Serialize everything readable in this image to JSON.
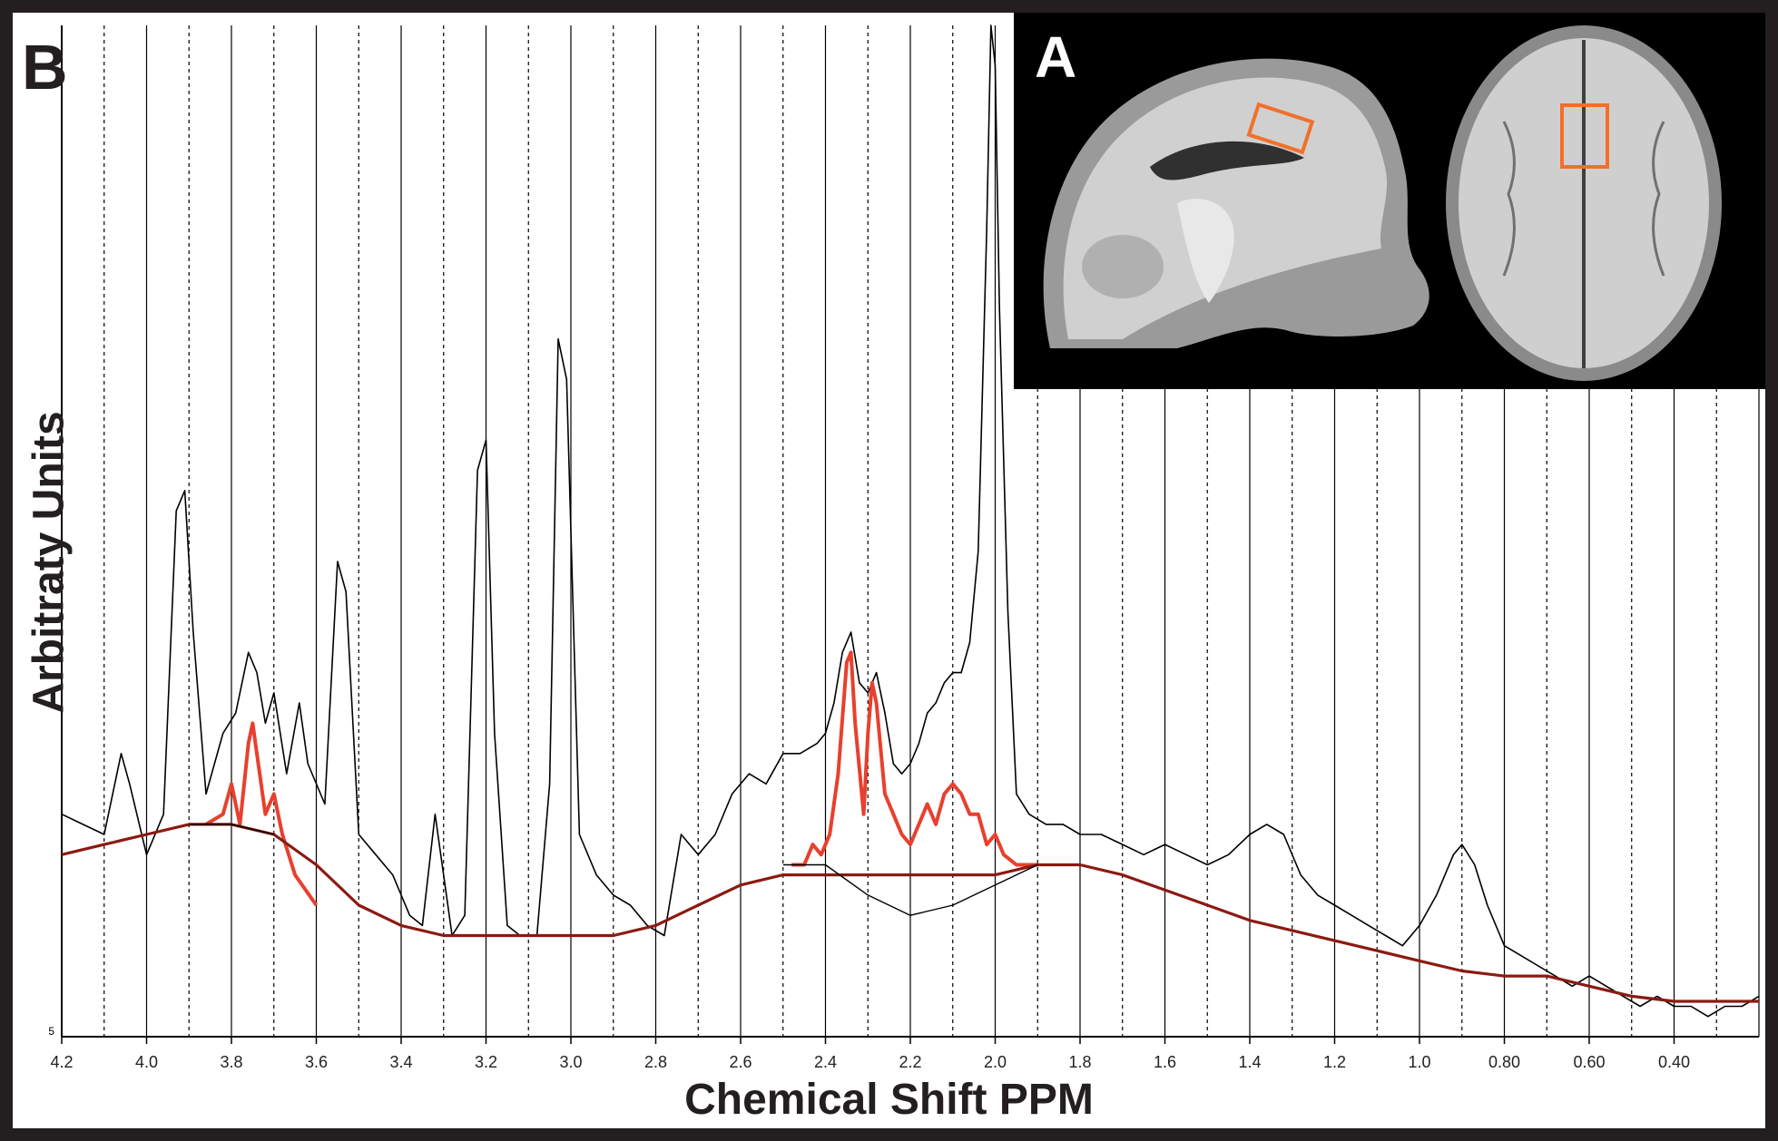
{
  "panels": {
    "b_label": "B",
    "a_label": "A"
  },
  "colors": {
    "spectrum": "#000000",
    "metabolite_fit": "#e8402e",
    "baseline_fit": "#8b1a12",
    "roi_box": "#f36f2a",
    "frame": "#231f20"
  },
  "chart_data": {
    "type": "line",
    "title": "",
    "xlabel": "Chemical Shift PPM",
    "ylabel": "Arbitraty Units",
    "x_reversed": true,
    "xlim": [
      4.2,
      0.2
    ],
    "ylim": [
      0,
      100
    ],
    "x_tick_labels": [
      "4.2",
      "4.0",
      "3.8",
      "3.6",
      "3.4",
      "3.2",
      "3.0",
      "2.8",
      "2.6",
      "2.4",
      "2.2",
      "2.0",
      "1.8",
      "1.6",
      "1.4",
      "1.2",
      "1.0",
      "0.80",
      "0.60",
      "0.40"
    ],
    "x_tick_values": [
      4.2,
      4.0,
      3.8,
      3.6,
      3.4,
      3.2,
      3.0,
      2.8,
      2.6,
      2.4,
      2.2,
      2.0,
      1.8,
      1.6,
      1.4,
      1.2,
      1.0,
      0.8,
      0.6,
      0.4
    ],
    "y_tick_label": "5",
    "grid": {
      "solid_every_ppm": 0.2,
      "dashed_offset_ppm": 0.1
    },
    "series": [
      {
        "role": "measured-spectrum",
        "color": "#000000",
        "points": [
          [
            4.2,
            22
          ],
          [
            4.15,
            21
          ],
          [
            4.1,
            20
          ],
          [
            4.06,
            28
          ],
          [
            4.04,
            25
          ],
          [
            4.0,
            18
          ],
          [
            3.96,
            22
          ],
          [
            3.93,
            52
          ],
          [
            3.91,
            54
          ],
          [
            3.89,
            40
          ],
          [
            3.86,
            24
          ],
          [
            3.82,
            30
          ],
          [
            3.79,
            32
          ],
          [
            3.76,
            38
          ],
          [
            3.74,
            36
          ],
          [
            3.72,
            31
          ],
          [
            3.7,
            34
          ],
          [
            3.67,
            26
          ],
          [
            3.64,
            33
          ],
          [
            3.62,
            27
          ],
          [
            3.58,
            23
          ],
          [
            3.55,
            47
          ],
          [
            3.53,
            44
          ],
          [
            3.5,
            20
          ],
          [
            3.46,
            18
          ],
          [
            3.42,
            16
          ],
          [
            3.38,
            12
          ],
          [
            3.35,
            11
          ],
          [
            3.32,
            22
          ],
          [
            3.28,
            10
          ],
          [
            3.25,
            12
          ],
          [
            3.22,
            56
          ],
          [
            3.2,
            59
          ],
          [
            3.18,
            30
          ],
          [
            3.15,
            11
          ],
          [
            3.12,
            10
          ],
          [
            3.08,
            10
          ],
          [
            3.05,
            25
          ],
          [
            3.03,
            69
          ],
          [
            3.01,
            65
          ],
          [
            2.98,
            20
          ],
          [
            2.94,
            16
          ],
          [
            2.9,
            14
          ],
          [
            2.86,
            13
          ],
          [
            2.82,
            11
          ],
          [
            2.78,
            10
          ],
          [
            2.74,
            20
          ],
          [
            2.7,
            18
          ],
          [
            2.66,
            20
          ],
          [
            2.62,
            24
          ],
          [
            2.58,
            26
          ],
          [
            2.54,
            25
          ],
          [
            2.5,
            28
          ],
          [
            2.46,
            28
          ],
          [
            2.42,
            29
          ],
          [
            2.4,
            30
          ],
          [
            2.38,
            33
          ],
          [
            2.36,
            38
          ],
          [
            2.34,
            40
          ],
          [
            2.32,
            35
          ],
          [
            2.3,
            34
          ],
          [
            2.28,
            36
          ],
          [
            2.26,
            32
          ],
          [
            2.24,
            27
          ],
          [
            2.22,
            26
          ],
          [
            2.2,
            27
          ],
          [
            2.18,
            29
          ],
          [
            2.16,
            32
          ],
          [
            2.14,
            33
          ],
          [
            2.12,
            35
          ],
          [
            2.1,
            36
          ],
          [
            2.08,
            36
          ],
          [
            2.06,
            39
          ],
          [
            2.04,
            48
          ],
          [
            2.02,
            80
          ],
          [
            2.01,
            100
          ],
          [
            2.0,
            96
          ],
          [
            1.99,
            72
          ],
          [
            1.97,
            42
          ],
          [
            1.95,
            24
          ],
          [
            1.92,
            22
          ],
          [
            1.88,
            21
          ],
          [
            1.84,
            21
          ],
          [
            1.8,
            20
          ],
          [
            1.75,
            20
          ],
          [
            1.7,
            19
          ],
          [
            1.65,
            18
          ],
          [
            1.6,
            19
          ],
          [
            1.55,
            18
          ],
          [
            1.5,
            17
          ],
          [
            1.45,
            18
          ],
          [
            1.4,
            20
          ],
          [
            1.36,
            21
          ],
          [
            1.32,
            20
          ],
          [
            1.28,
            16
          ],
          [
            1.24,
            14
          ],
          [
            1.2,
            13
          ],
          [
            1.16,
            12
          ],
          [
            1.12,
            11
          ],
          [
            1.08,
            10
          ],
          [
            1.04,
            9
          ],
          [
            1.0,
            11
          ],
          [
            0.96,
            14
          ],
          [
            0.92,
            18
          ],
          [
            0.9,
            19
          ],
          [
            0.87,
            17
          ],
          [
            0.84,
            13
          ],
          [
            0.8,
            9
          ],
          [
            0.76,
            8
          ],
          [
            0.72,
            7
          ],
          [
            0.68,
            6
          ],
          [
            0.64,
            5
          ],
          [
            0.6,
            6
          ],
          [
            0.56,
            5
          ],
          [
            0.52,
            4
          ],
          [
            0.48,
            3
          ],
          [
            0.44,
            4
          ],
          [
            0.4,
            3
          ],
          [
            0.36,
            3
          ],
          [
            0.32,
            2
          ],
          [
            0.28,
            3
          ],
          [
            0.24,
            3
          ],
          [
            0.2,
            4
          ]
        ]
      },
      {
        "role": "metabolite-fit",
        "color": "#e8402e",
        "points": [
          [
            3.86,
            21
          ],
          [
            3.82,
            22
          ],
          [
            3.8,
            25
          ],
          [
            3.78,
            21
          ],
          [
            3.76,
            29
          ],
          [
            3.75,
            31
          ],
          [
            3.74,
            28
          ],
          [
            3.72,
            22
          ],
          [
            3.7,
            24
          ],
          [
            3.68,
            20
          ],
          [
            3.65,
            16
          ],
          [
            3.6,
            13
          ],
          [
            2.48,
            17
          ],
          [
            2.45,
            17
          ],
          [
            2.43,
            19
          ],
          [
            2.41,
            18
          ],
          [
            2.39,
            20
          ],
          [
            2.37,
            26
          ],
          [
            2.35,
            37
          ],
          [
            2.34,
            38
          ],
          [
            2.33,
            31
          ],
          [
            2.31,
            22
          ],
          [
            2.3,
            30
          ],
          [
            2.29,
            35
          ],
          [
            2.28,
            33
          ],
          [
            2.26,
            24
          ],
          [
            2.24,
            22
          ],
          [
            2.22,
            20
          ],
          [
            2.2,
            19
          ],
          [
            2.18,
            21
          ],
          [
            2.16,
            23
          ],
          [
            2.14,
            21
          ],
          [
            2.12,
            24
          ],
          [
            2.1,
            25
          ],
          [
            2.08,
            24
          ],
          [
            2.06,
            22
          ],
          [
            2.04,
            22
          ],
          [
            2.02,
            19
          ],
          [
            2.0,
            20
          ],
          [
            1.98,
            18
          ],
          [
            1.95,
            17
          ],
          [
            1.9,
            17
          ]
        ]
      },
      {
        "role": "baseline-fit",
        "color": "#8b1a12",
        "points": [
          [
            4.2,
            18
          ],
          [
            4.1,
            19
          ],
          [
            4.0,
            20
          ],
          [
            3.9,
            21
          ],
          [
            3.8,
            21
          ],
          [
            3.7,
            20
          ],
          [
            3.6,
            17
          ],
          [
            3.5,
            13
          ],
          [
            3.4,
            11
          ],
          [
            3.3,
            10
          ],
          [
            3.2,
            10
          ],
          [
            3.1,
            10
          ],
          [
            3.0,
            10
          ],
          [
            2.9,
            10
          ],
          [
            2.8,
            11
          ],
          [
            2.7,
            13
          ],
          [
            2.6,
            15
          ],
          [
            2.5,
            16
          ],
          [
            2.4,
            16
          ],
          [
            2.3,
            16
          ],
          [
            2.2,
            16
          ],
          [
            2.1,
            16
          ],
          [
            2.0,
            16
          ],
          [
            1.9,
            17
          ],
          [
            1.8,
            17
          ],
          [
            1.7,
            16
          ],
          [
            1.6,
            14.5
          ],
          [
            1.5,
            13
          ],
          [
            1.4,
            11.5
          ],
          [
            1.3,
            10.5
          ],
          [
            1.2,
            9.5
          ],
          [
            1.1,
            8.5
          ],
          [
            1.0,
            7.5
          ],
          [
            0.9,
            6.5
          ],
          [
            0.8,
            6
          ],
          [
            0.7,
            6
          ],
          [
            0.6,
            5
          ],
          [
            0.5,
            4
          ],
          [
            0.4,
            3.5
          ],
          [
            0.3,
            3.5
          ],
          [
            0.2,
            3.5
          ]
        ]
      },
      {
        "role": "thin-baseline",
        "color": "#000000",
        "points": [
          [
            3.9,
            21
          ],
          [
            3.8,
            21
          ],
          [
            3.7,
            20
          ],
          [
            2.5,
            17
          ],
          [
            2.4,
            17
          ],
          [
            2.3,
            14
          ],
          [
            2.2,
            12
          ],
          [
            2.1,
            13
          ],
          [
            2.0,
            15
          ],
          [
            1.9,
            17
          ]
        ]
      }
    ]
  }
}
